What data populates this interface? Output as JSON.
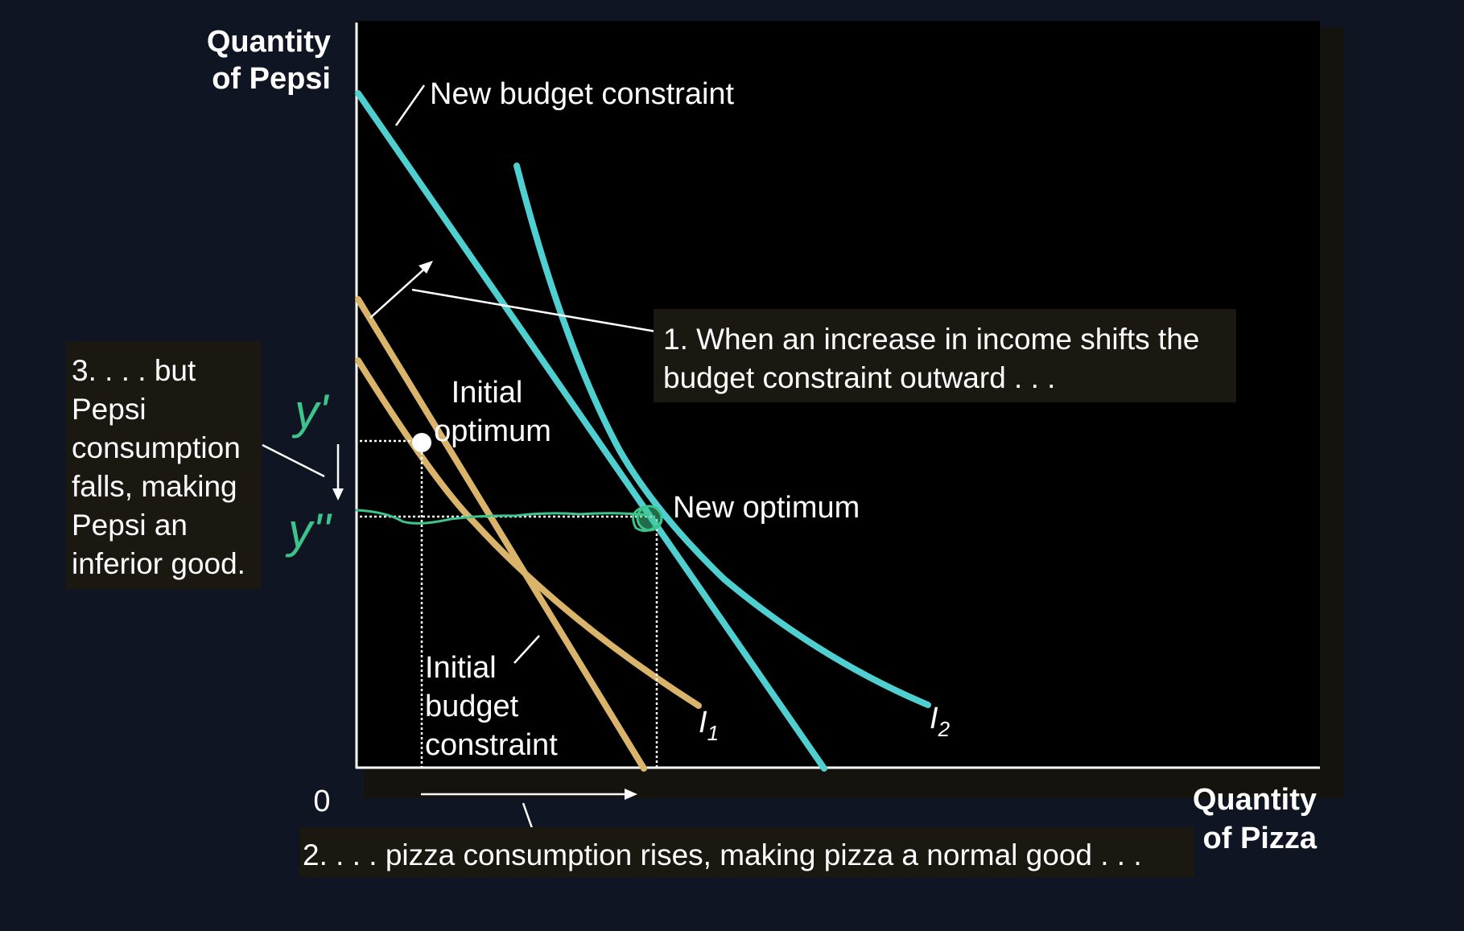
{
  "axes": {
    "y_label_line1": "Quantity",
    "y_label_line2": "of Pepsi",
    "x_label_line1": "Quantity",
    "x_label_line2": "of Pizza",
    "origin": "0"
  },
  "labels": {
    "new_budget": "New budget constraint",
    "initial_optimum_line1": "Initial",
    "initial_optimum_line2": "optimum",
    "new_optimum": "New optimum",
    "initial_budget_line1": "Initial",
    "initial_budget_line2": "budget",
    "initial_budget_line3": "constraint",
    "i1_letter": "I",
    "i1_sub": "1",
    "i2_letter": "I",
    "i2_sub": "2"
  },
  "notes": {
    "note1_line1": "1. When an increase in income shifts the",
    "note1_line2": "budget constraint outward . . .",
    "note2": "2. . . . pizza consumption rises, making pizza a normal good . . .",
    "note3_line1": "3. . . . but",
    "note3_line2": "Pepsi",
    "note3_line3": "consumption",
    "note3_line4": "falls, making",
    "note3_line5": "Pepsi an",
    "note3_line6": "inferior good."
  },
  "handwriting": {
    "y1": "y'",
    "y2": "y''"
  },
  "colors": {
    "background": "#0f1522",
    "plot": "#000000",
    "initial_curves": "#d9b46a",
    "new_curves": "#4fcfcf",
    "handwriting": "#3cc48a",
    "note_box": "#1b1812"
  }
}
